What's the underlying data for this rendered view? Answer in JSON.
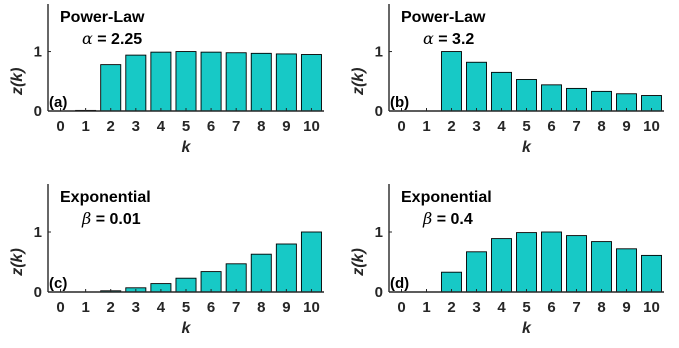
{
  "colors": {
    "bar_fill": "#17c9c6",
    "bar_stroke": "#000000",
    "axis": "#262626",
    "tick_text": "#262626",
    "title_text": "#000000"
  },
  "chart_data": [
    {
      "type": "bar",
      "panel_label": "(a)",
      "title": "Power-Law",
      "param_symbol": "α",
      "param_text": " = 2.25",
      "xlabel": "k",
      "ylabel": "z(k)",
      "ylim": [
        0,
        1.8
      ],
      "yticks": [
        0,
        1
      ],
      "categories": [
        0,
        1,
        2,
        3,
        4,
        5,
        6,
        7,
        8,
        9,
        10
      ],
      "values": [
        0,
        0.01,
        0.78,
        0.94,
        0.99,
        1.0,
        0.99,
        0.98,
        0.97,
        0.96,
        0.95
      ]
    },
    {
      "type": "bar",
      "panel_label": "(b)",
      "title": "Power-Law",
      "param_symbol": "α",
      "param_text": " = 3.2",
      "xlabel": "k",
      "ylabel": "z(k)",
      "ylim": [
        0,
        1.8
      ],
      "yticks": [
        0,
        1
      ],
      "categories": [
        0,
        1,
        2,
        3,
        4,
        5,
        6,
        7,
        8,
        9,
        10
      ],
      "values": [
        0,
        0.0,
        1.0,
        0.82,
        0.65,
        0.53,
        0.44,
        0.38,
        0.33,
        0.29,
        0.26
      ]
    },
    {
      "type": "bar",
      "panel_label": "(c)",
      "title": "Exponential",
      "param_symbol": "β",
      "param_text": " = 0.01",
      "xlabel": "k",
      "ylabel": "z(k)",
      "ylim": [
        0,
        1.8
      ],
      "yticks": [
        0,
        1
      ],
      "categories": [
        0,
        1,
        2,
        3,
        4,
        5,
        6,
        7,
        8,
        9,
        10
      ],
      "values": [
        0,
        0.0,
        0.02,
        0.07,
        0.14,
        0.23,
        0.34,
        0.47,
        0.63,
        0.8,
        1.0
      ]
    },
    {
      "type": "bar",
      "panel_label": "(d)",
      "title": "Exponential",
      "param_symbol": "β",
      "param_text": " = 0.4",
      "xlabel": "k",
      "ylabel": "z(k)",
      "ylim": [
        0,
        1.8
      ],
      "yticks": [
        0,
        1
      ],
      "categories": [
        0,
        1,
        2,
        3,
        4,
        5,
        6,
        7,
        8,
        9,
        10
      ],
      "values": [
        0,
        0.0,
        0.33,
        0.67,
        0.89,
        0.99,
        1.0,
        0.94,
        0.84,
        0.72,
        0.61
      ]
    }
  ]
}
